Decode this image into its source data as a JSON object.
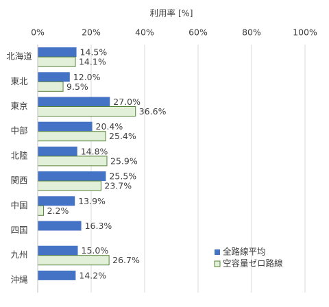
{
  "chart_data": {
    "type": "hbar",
    "title": "利用率 [%]",
    "categories": [
      "北海道",
      "東北",
      "東京",
      "中部",
      "北陸",
      "関西",
      "中国",
      "四国",
      "九州",
      "沖縄"
    ],
    "series": [
      {
        "name": "全路線平均",
        "color": "#4472c4",
        "values": [
          14.5,
          12.0,
          27.0,
          20.4,
          14.8,
          25.5,
          13.9,
          16.3,
          15.0,
          14.2
        ],
        "value_labels": [
          "14.5%",
          "12.0%",
          "27.0%",
          "20.4%",
          "14.8%",
          "25.5%",
          "13.9%",
          "16.3%",
          "15.0%",
          "14.2%"
        ]
      },
      {
        "name": "空容量ゼロ路線",
        "color": "#e2f0d9",
        "edge_color": "#548235",
        "values": [
          14.1,
          9.5,
          36.6,
          25.4,
          25.9,
          23.7,
          2.2,
          null,
          26.7,
          null
        ],
        "value_labels": [
          "14.1%",
          "9.5%",
          "36.6%",
          "25.4%",
          "25.9%",
          "23.7%",
          "2.2%",
          null,
          "26.7%",
          null
        ]
      }
    ],
    "xlim": [
      0,
      100
    ],
    "xticks": [
      {
        "value": 0,
        "label": "0%"
      },
      {
        "value": 20,
        "label": "20%"
      },
      {
        "value": 40,
        "label": "40%"
      },
      {
        "value": 60,
        "label": "60%"
      },
      {
        "value": 80,
        "label": "80%"
      },
      {
        "value": 100,
        "label": "100%"
      }
    ],
    "grid": true,
    "legend": "lower right"
  }
}
